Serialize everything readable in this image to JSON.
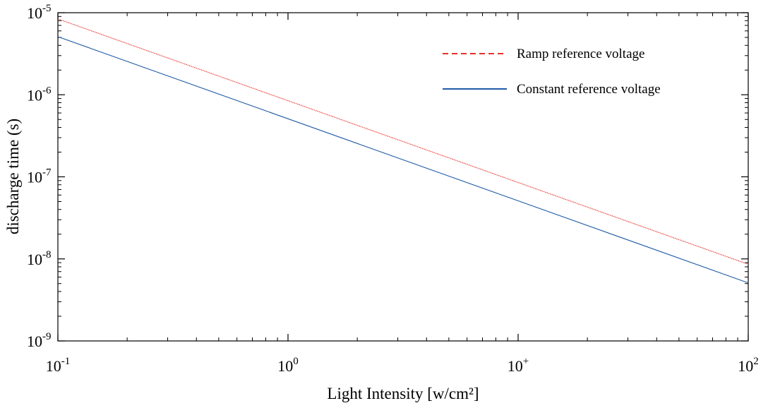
{
  "chart_data": {
    "type": "line",
    "title": "",
    "xlabel": "Light Intensity [w/cm²]",
    "ylabel": "discharge time (s)",
    "xscale": "log",
    "yscale": "log",
    "xlim": [
      0.1,
      100
    ],
    "ylim": [
      1e-09,
      1e-05
    ],
    "grid": false,
    "legend_position": "top-right",
    "xticks": [
      {
        "value": 0.1,
        "base": "10",
        "exp": "-1"
      },
      {
        "value": 1,
        "base": "10",
        "exp": "0"
      },
      {
        "value": 10,
        "base": "10",
        "exp": "+"
      },
      {
        "value": 100,
        "base": "10",
        "exp": "2"
      }
    ],
    "yticks": [
      {
        "value": 1e-09,
        "base": "10",
        "exp": "-9"
      },
      {
        "value": 1e-08,
        "base": "10",
        "exp": "-8"
      },
      {
        "value": 1e-07,
        "base": "10",
        "exp": "-7"
      },
      {
        "value": 1e-06,
        "base": "10",
        "exp": "-6"
      },
      {
        "value": 1e-05,
        "base": "10",
        "exp": "-5"
      }
    ],
    "series": [
      {
        "name": "Ramp reference voltage",
        "color": "#e8302a",
        "style": "dashed",
        "x": [
          0.1,
          100
        ],
        "y": [
          8.4e-06,
          8.6e-09
        ]
      },
      {
        "name": "Constant reference voltage",
        "color": "#1f5aa6",
        "style": "solid",
        "x": [
          0.1,
          100
        ],
        "y": [
          5.1e-06,
          5.1e-09
        ]
      }
    ]
  }
}
